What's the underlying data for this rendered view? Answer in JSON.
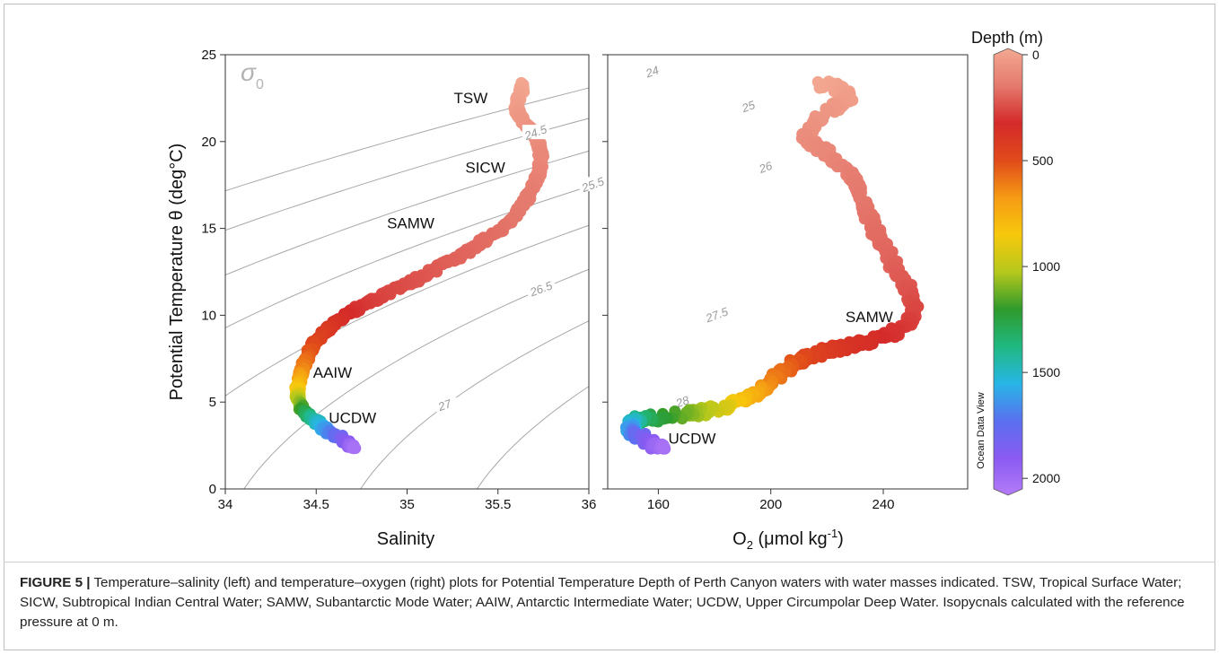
{
  "figure": {
    "caption_bold": "FIGURE 5 |",
    "caption_text": " Temperature–salinity (left) and temperature–oxygen (right) plots for Potential Temperature Depth of Perth Canyon waters with water masses indicated. TSW, Tropical Surface Water; SICW, Subtropical Indian Central Water; SAMW, Subantarctic Mode Water; AAIW, Antarctic Intermediate Water; UCDW, Upper Circumpolar Deep Water. Isopycnals calculated with the reference pressure at 0 m."
  },
  "colorbar": {
    "title": "Depth (m)",
    "ticks": [
      "0",
      "500",
      "1000",
      "1500",
      "2000"
    ],
    "tick_values": [
      0,
      500,
      1000,
      1500,
      2000
    ],
    "range": [
      0,
      2050
    ],
    "colors": [
      "#f3a892",
      "#e57a6e",
      "#d42a2a",
      "#e04a1a",
      "#f59a14",
      "#f7c80c",
      "#b6c81c",
      "#2f9a2c",
      "#20b880",
      "#27b6e6",
      "#5a70f0",
      "#8a5af2",
      "#b47cf8"
    ],
    "watermark": "Ocean Data View"
  },
  "chart_data": [
    {
      "type": "scatter",
      "id": "ts-plot",
      "xlabel": "Salinity",
      "ylabel": "Potential Temperature θ (deg°C)",
      "xlim": [
        34,
        36
      ],
      "ylim": [
        0,
        25
      ],
      "xticks": [
        "34",
        "34.5",
        "35",
        "35.5",
        "36"
      ],
      "xtick_values": [
        34,
        34.5,
        35,
        35.5,
        36
      ],
      "yticks": [
        "0",
        "5",
        "10",
        "15",
        "20",
        "25"
      ],
      "ytick_values": [
        0,
        5,
        10,
        15,
        20,
        25
      ],
      "sigma_label": "σ",
      "sigma_sub": "0",
      "isopycnal_labels": [
        "24",
        "24.5",
        "25",
        "25.5",
        "26",
        "26.5",
        "27",
        "27.5",
        "28"
      ],
      "water_mass_labels": [
        {
          "text": "TSW",
          "x": 35.35,
          "y": 22.2
        },
        {
          "text": "SICW",
          "x": 35.43,
          "y": 18.2
        },
        {
          "text": "SAMW",
          "x": 35.02,
          "y": 15.0
        },
        {
          "text": "AAIW",
          "x": 34.59,
          "y": 6.4
        },
        {
          "text": "UCDW",
          "x": 34.7,
          "y": 3.8
        }
      ],
      "profile": {
        "salinity": [
          34.71,
          34.68,
          34.62,
          34.55,
          34.5,
          34.44,
          34.41,
          34.395,
          34.4,
          34.42,
          34.45,
          34.49,
          34.55,
          34.62,
          34.7,
          34.78,
          34.88,
          35.0,
          35.13,
          35.25,
          35.37,
          35.47,
          35.56,
          35.63,
          35.68,
          35.72,
          35.74,
          35.72,
          35.68,
          35.62,
          35.6,
          35.62,
          35.64
        ],
        "temperature": [
          2.3,
          2.6,
          3.0,
          3.4,
          3.9,
          4.4,
          4.8,
          5.3,
          6.0,
          6.8,
          7.6,
          8.4,
          9.1,
          9.7,
          10.2,
          10.7,
          11.2,
          11.8,
          12.5,
          13.2,
          13.9,
          14.6,
          15.3,
          16.2,
          17.1,
          18.0,
          19.0,
          20.0,
          20.8,
          21.4,
          22.0,
          22.7,
          23.3
        ],
        "depth": [
          2000,
          1900,
          1750,
          1600,
          1450,
          1250,
          1100,
          950,
          780,
          640,
          560,
          480,
          420,
          370,
          330,
          300,
          280,
          260,
          240,
          220,
          205,
          195,
          180,
          170,
          160,
          140,
          120,
          100,
          80,
          60,
          40,
          20,
          5
        ]
      }
    },
    {
      "type": "scatter",
      "id": "to-plot",
      "xlabel": "O",
      "xlabel_sub": "2",
      "xlabel_rest": " (μmol kg",
      "xlabel_sup": "-1",
      "xlabel_end": ")",
      "xlim": [
        142,
        270
      ],
      "ylim": [
        0,
        25
      ],
      "xticks": [
        "160",
        "200",
        "240"
      ],
      "xtick_values": [
        160,
        200,
        240
      ],
      "water_mass_labels": [
        {
          "text": "SAMW",
          "x": 235,
          "y": 9.6
        },
        {
          "text": "UCDW",
          "x": 172,
          "y": 2.6
        }
      ],
      "profile": {
        "oxygen": [
          162,
          158,
          153,
          150,
          151,
          158,
          170,
          182,
          192,
          199,
          206,
          213,
          221,
          232,
          242,
          249,
          251,
          250,
          247,
          243,
          240,
          237,
          234,
          232,
          230,
          226,
          220,
          212,
          215,
          222,
          228,
          225,
          218
        ],
        "temperature": [
          2.3,
          2.6,
          3.0,
          3.4,
          3.9,
          4.1,
          4.3,
          4.6,
          5.2,
          6.0,
          7.0,
          7.6,
          8.0,
          8.4,
          8.8,
          9.5,
          10.2,
          11.0,
          12.0,
          13.0,
          14.0,
          15.0,
          16.0,
          17.0,
          17.8,
          18.5,
          19.3,
          20.2,
          21.0,
          21.8,
          22.5,
          23.1,
          23.3
        ],
        "depth": [
          2000,
          1900,
          1750,
          1600,
          1450,
          1250,
          1100,
          950,
          780,
          640,
          560,
          480,
          420,
          370,
          330,
          300,
          280,
          260,
          240,
          220,
          205,
          195,
          180,
          170,
          160,
          140,
          120,
          100,
          80,
          60,
          40,
          20,
          5
        ]
      }
    }
  ]
}
